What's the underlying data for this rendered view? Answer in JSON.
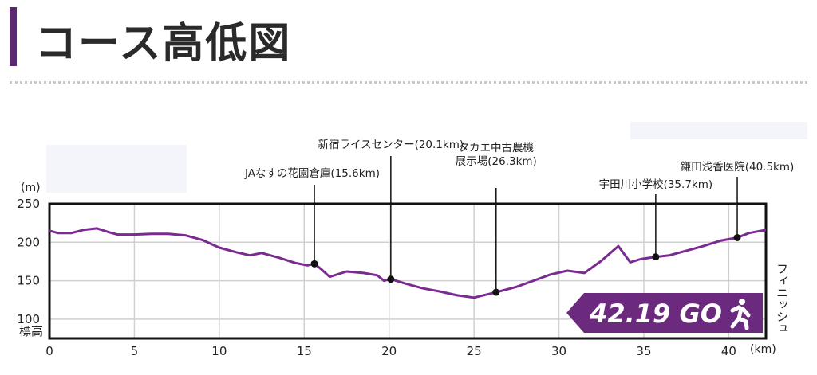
{
  "title": "コース高低図",
  "finish_label": "フィニッシュ",
  "badge": {
    "text": "42.19 GO",
    "icon": "runner-icon",
    "color": "#6b2a7e"
  },
  "colors": {
    "accent": "#5b2a6e",
    "line": "#7a2a90",
    "frame": "#111111",
    "grid": "#d0d0d0"
  },
  "chart_data": {
    "type": "line",
    "title": "コース高低図",
    "xlabel": "(km)",
    "ylabel": "(m)",
    "ylabel_bottom": "標高",
    "xlim": [
      0,
      42.19
    ],
    "ylim": [
      75,
      250
    ],
    "xticks": [
      0,
      5,
      10,
      15,
      20,
      25,
      30,
      35,
      40
    ],
    "yticks": [
      100,
      150,
      200,
      250
    ],
    "x": [
      0,
      0.5,
      1.3,
      2,
      2.8,
      3.5,
      4,
      5,
      6,
      7,
      8,
      9,
      10,
      11,
      11.8,
      12.5,
      13.5,
      14.5,
      15.2,
      15.6,
      16,
      16.5,
      17.5,
      18.5,
      19.3,
      19.7,
      20.1,
      21,
      22,
      23,
      24,
      25,
      26.3,
      27.5,
      28.5,
      29.5,
      30.5,
      31.5,
      32.5,
      33.5,
      34.2,
      34.8,
      35.7,
      36.5,
      37.5,
      38.5,
      39.5,
      40.5,
      41.2,
      42.19
    ],
    "y": [
      215,
      212,
      212,
      216,
      218,
      213,
      210,
      210,
      211,
      211,
      209,
      203,
      193,
      187,
      183,
      186,
      180,
      173,
      170,
      172,
      165,
      155,
      162,
      160,
      157,
      150,
      152,
      146,
      140,
      136,
      131,
      128,
      135,
      142,
      150,
      158,
      163,
      160,
      176,
      195,
      174,
      178,
      181,
      183,
      189,
      195,
      202,
      206,
      212,
      216
    ],
    "series": [
      {
        "name": "標高",
        "color": "#7a2a90"
      }
    ],
    "annotations": [
      {
        "label": "JAなすの花園倉庫(15.6km)",
        "x": 15.6,
        "y": 172,
        "label_lines": [
          "JAなすの花園倉庫(15.6km)"
        ]
      },
      {
        "label": "新宿ライスセンター(20.1km)",
        "x": 20.1,
        "y": 152,
        "label_lines": [
          "新宿ライスセンター(20.1km)"
        ]
      },
      {
        "label": "タカエ中古農機展示場(26.3km)",
        "x": 26.3,
        "y": 135,
        "label_lines": [
          "タカエ中古農機",
          "展示場(26.3km)"
        ]
      },
      {
        "label": "宇田川小学校(35.7km)",
        "x": 35.7,
        "y": 181,
        "label_lines": [
          "宇田川小学校(35.7km)"
        ]
      },
      {
        "label": "鎌田浅香医院(40.5km)",
        "x": 40.5,
        "y": 206,
        "label_lines": [
          "鎌田浅香医院(40.5km)"
        ]
      }
    ]
  }
}
